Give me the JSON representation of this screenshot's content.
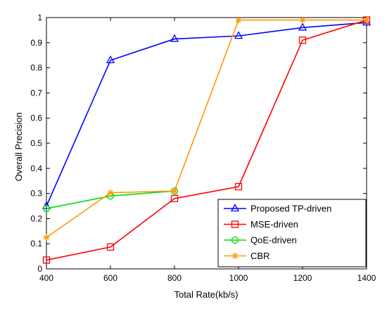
{
  "chart_data": {
    "type": "line",
    "xlabel": "Total Rate(kb/s)",
    "ylabel": "Overall Precision",
    "xlim": [
      400,
      1400
    ],
    "ylim": [
      0,
      1
    ],
    "xticks": [
      "400",
      "600",
      "800",
      "1000",
      "1200",
      "1400"
    ],
    "yticks": [
      "0",
      "0.1",
      "0.2",
      "0.3",
      "0.4",
      "0.5",
      "0.6",
      "0.7",
      "0.8",
      "0.9",
      "1"
    ],
    "grid": false,
    "legend_position": "bottom-right",
    "series": [
      {
        "name": "Proposed TP-driven",
        "color": "#0000ff",
        "marker": "triangle",
        "x": [
          400,
          600,
          800,
          1000,
          1200,
          1400
        ],
        "y": [
          0.25,
          0.83,
          0.915,
          0.927,
          0.96,
          0.98
        ]
      },
      {
        "name": "MSE-driven",
        "color": "#ff0000",
        "marker": "square",
        "x": [
          400,
          600,
          800,
          1000,
          1200,
          1400
        ],
        "y": [
          0.035,
          0.087,
          0.28,
          0.327,
          0.91,
          0.99
        ]
      },
      {
        "name": "QoE-driven",
        "color": "#00dd00",
        "marker": "circle",
        "x": [
          400,
          600,
          800
        ],
        "y": [
          0.24,
          0.29,
          0.31
        ]
      },
      {
        "name": "CBR",
        "color": "#ff9900",
        "marker": "star",
        "x": [
          400,
          600,
          800,
          1000,
          1200,
          1400
        ],
        "y": [
          0.125,
          0.303,
          0.31,
          0.99,
          0.99,
          0.99
        ]
      }
    ]
  }
}
